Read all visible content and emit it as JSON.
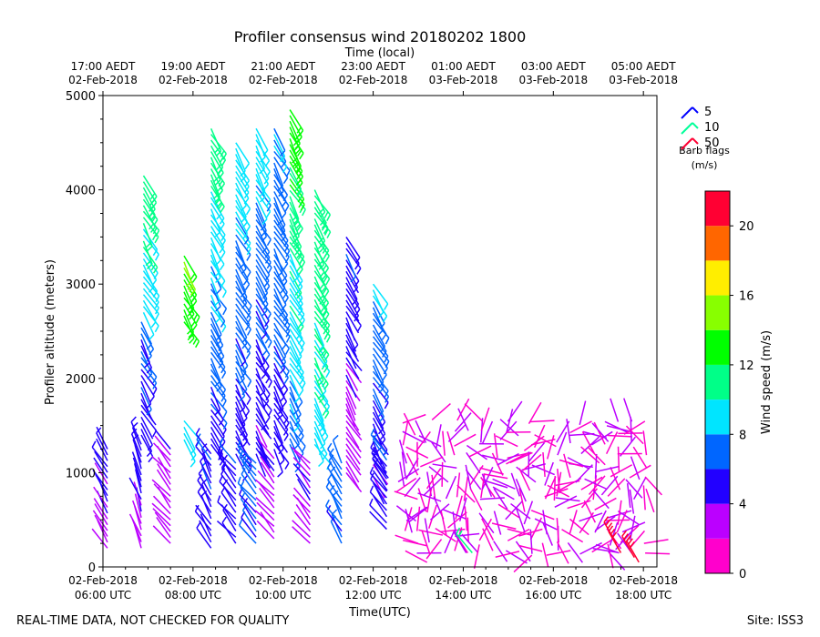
{
  "chart_data": {
    "type": "wind-barb",
    "title": "Profiler consensus wind 20180202 1800",
    "top_axis_title": "Time (local)",
    "xlabel": "Time(UTC)",
    "ylabel": "Profiler altitude (meters)",
    "ylim": [
      0,
      5000
    ],
    "xlim_hours_utc": [
      6,
      18.3
    ],
    "y_ticks": [
      0,
      1000,
      2000,
      3000,
      4000,
      5000
    ],
    "bottom_ticks": [
      {
        "hour": 6,
        "line1": "02-Feb-2018",
        "line2": "06:00 UTC"
      },
      {
        "hour": 8,
        "line1": "02-Feb-2018",
        "line2": "08:00 UTC"
      },
      {
        "hour": 10,
        "line1": "02-Feb-2018",
        "line2": "10:00 UTC"
      },
      {
        "hour": 12,
        "line1": "02-Feb-2018",
        "line2": "12:00 UTC"
      },
      {
        "hour": 14,
        "line1": "02-Feb-2018",
        "line2": "14:00 UTC"
      },
      {
        "hour": 16,
        "line1": "02-Feb-2018",
        "line2": "16:00 UTC"
      },
      {
        "hour": 18,
        "line1": "02-Feb-2018",
        "line2": "18:00 UTC"
      }
    ],
    "top_ticks": [
      {
        "hour": 6,
        "line1": "17:00 AEDT",
        "line2": "02-Feb-2018"
      },
      {
        "hour": 8,
        "line1": "19:00 AEDT",
        "line2": "02-Feb-2018"
      },
      {
        "hour": 10,
        "line1": "21:00 AEDT",
        "line2": "02-Feb-2018"
      },
      {
        "hour": 12,
        "line1": "23:00 AEDT",
        "line2": "02-Feb-2018"
      },
      {
        "hour": 14,
        "line1": "01:00 AEDT",
        "line2": "03-Feb-2018"
      },
      {
        "hour": 16,
        "line1": "03:00 AEDT",
        "line2": "03-Feb-2018"
      },
      {
        "hour": 18,
        "line1": "05:00 AEDT",
        "line2": "03-Feb-2018"
      }
    ],
    "barb_legend": {
      "title_line1": "Barb flags",
      "title_line2": "(m/s)",
      "entries": [
        {
          "label": "5",
          "color": "#0000ff"
        },
        {
          "label": "10",
          "color": "#00ff99"
        },
        {
          "label": "50",
          "color": "#ff0033"
        }
      ]
    },
    "colorbar": {
      "label": "Wind speed (m/s)",
      "range": [
        0,
        22
      ],
      "ticks": [
        0,
        4,
        8,
        12,
        16,
        20
      ],
      "bins": [
        {
          "from": 0,
          "to": 2,
          "color": "#ff00cc"
        },
        {
          "from": 2,
          "to": 4,
          "color": "#bb00ff"
        },
        {
          "from": 4,
          "to": 6,
          "color": "#2200ff"
        },
        {
          "from": 6,
          "to": 8,
          "color": "#0066ff"
        },
        {
          "from": 8,
          "to": 10,
          "color": "#00e5ff"
        },
        {
          "from": 10,
          "to": 12,
          "color": "#00ff88"
        },
        {
          "from": 12,
          "to": 14,
          "color": "#00ff00"
        },
        {
          "from": 14,
          "to": 16,
          "color": "#88ff00"
        },
        {
          "from": 16,
          "to": 18,
          "color": "#ffee00"
        },
        {
          "from": 18,
          "to": 20,
          "color": "#ff6600"
        },
        {
          "from": 20,
          "to": 22,
          "color": "#ff0033"
        }
      ]
    },
    "groups": [
      {
        "time": 6.1,
        "h0": 200,
        "h1": 1250,
        "spd0": 3,
        "spd1": 5,
        "dir": 120
      },
      {
        "time": 6.85,
        "h0": 200,
        "h1": 1300,
        "spd0": 3,
        "spd1": 5,
        "dir": 110
      },
      {
        "time": 6.85,
        "h0": 1400,
        "h1": 2600,
        "spd0": 5,
        "spd1": 6,
        "dir": 300
      },
      {
        "time": 6.9,
        "h0": 2700,
        "h1": 4150,
        "spd0": 9,
        "spd1": 11,
        "dir": 300
      },
      {
        "time": 7.8,
        "h0": 1350,
        "h1": 1550,
        "spd0": 8,
        "spd1": 9,
        "dir": 300
      },
      {
        "time": 7.8,
        "h0": 2600,
        "h1": 3300,
        "spd0": 13,
        "spd1": 14,
        "dir": 300
      },
      {
        "time": 7.5,
        "h0": 250,
        "h1": 1250,
        "spd0": 3,
        "spd1": 4,
        "dir": 130
      },
      {
        "time": 8.4,
        "h0": 200,
        "h1": 1200,
        "spd0": 5,
        "spd1": 6,
        "dir": 120
      },
      {
        "time": 8.4,
        "h0": 1300,
        "h1": 4650,
        "spd0": 5,
        "spd1": 11,
        "dir": 300
      },
      {
        "time": 8.95,
        "h0": 250,
        "h1": 1100,
        "spd0": 5,
        "spd1": 6,
        "dir": 130
      },
      {
        "time": 8.95,
        "h0": 1200,
        "h1": 4500,
        "spd0": 5,
        "spd1": 9,
        "dir": 300
      },
      {
        "time": 9.4,
        "h0": 250,
        "h1": 1100,
        "spd0": 6,
        "spd1": 7,
        "dir": 130
      },
      {
        "time": 9.4,
        "h0": 1200,
        "h1": 4650,
        "spd0": 4,
        "spd1": 9,
        "dir": 300
      },
      {
        "time": 9.8,
        "h0": 300,
        "h1": 1150,
        "spd0": 3,
        "spd1": 4,
        "dir": 130
      },
      {
        "time": 9.8,
        "h0": 1250,
        "h1": 4650,
        "spd0": 5,
        "spd1": 8,
        "dir": 300
      },
      {
        "time": 10.15,
        "h0": 1300,
        "h1": 4850,
        "spd0": 7,
        "spd1": 13,
        "dir": 300
      },
      {
        "time": 10.6,
        "h0": 250,
        "h1": 1100,
        "spd0": 3,
        "spd1": 4,
        "dir": 130
      },
      {
        "time": 10.7,
        "h0": 1300,
        "h1": 4000,
        "spd0": 9,
        "spd1": 12,
        "dir": 300
      },
      {
        "time": 11.3,
        "h0": 250,
        "h1": 1100,
        "spd0": 6,
        "spd1": 7,
        "dir": 120
      },
      {
        "time": 11.4,
        "h0": 1000,
        "h1": 3500,
        "spd0": 2,
        "spd1": 6,
        "dir": 300
      },
      {
        "time": 12.0,
        "h0": 900,
        "h1": 3000,
        "spd0": 4,
        "spd1": 8,
        "dir": 300
      },
      {
        "time": 12.3,
        "h0": 400,
        "h1": 1200,
        "spd0": 5,
        "spd1": 6,
        "dir": 130
      }
    ]
  },
  "footer": {
    "left_note": "REAL-TIME DATA, NOT CHECKED FOR QUALITY",
    "site": "Site: ISS3"
  }
}
